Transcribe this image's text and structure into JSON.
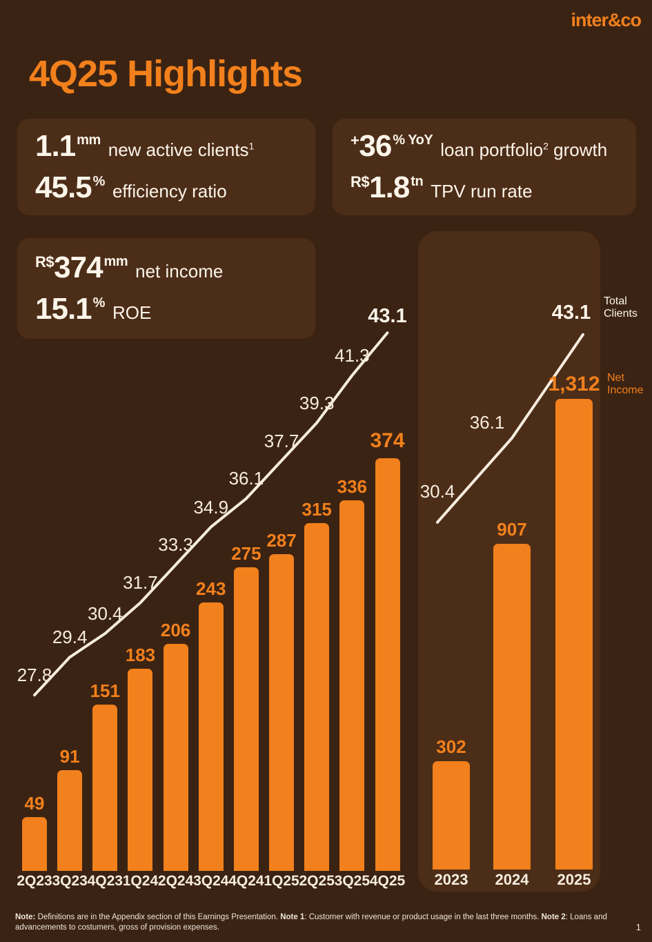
{
  "brand": {
    "logo_text": "inter&co",
    "logo_color": "#F2801C"
  },
  "page": {
    "title": "4Q25 Highlights",
    "page_number": "1",
    "colors": {
      "background": "#3B2313",
      "card": "#4C2D18",
      "accent": "#F2801C",
      "cream": "#FCF5EA"
    }
  },
  "cards": [
    {
      "name": "clients-efficiency-card",
      "metrics": [
        {
          "prefix": "",
          "value": "1.1",
          "unit": "mm",
          "label": "new active clients",
          "label_sup": "1",
          "label_tail": ""
        },
        {
          "prefix": "",
          "value": "45.5",
          "unit": "%",
          "label": "efficiency ratio",
          "label_sup": "",
          "label_tail": ""
        }
      ]
    },
    {
      "name": "loan-tpv-card",
      "metrics": [
        {
          "prefix": "+",
          "value": "36",
          "unit": "% YoY",
          "label": "loan portfolio",
          "label_sup": "2",
          "label_tail": " growth"
        },
        {
          "prefix": "R$",
          "value": "1.8",
          "unit": "tn",
          "label": "TPV run rate",
          "label_sup": "",
          "label_tail": ""
        }
      ]
    },
    {
      "name": "income-roe-card",
      "metrics": [
        {
          "prefix": "R$",
          "value": "374",
          "unit": "mm",
          "label": "net income",
          "label_sup": "",
          "label_tail": ""
        },
        {
          "prefix": "",
          "value": "15.1",
          "unit": "%",
          "label": "ROE",
          "label_sup": "",
          "label_tail": ""
        }
      ]
    }
  ],
  "legend": [
    {
      "label": "Total Clients",
      "series": "line",
      "color": "#FCF5EA"
    },
    {
      "label": "Net Income",
      "series": "bar",
      "color": "#F2801C"
    }
  ],
  "chart_data": [
    {
      "id": "quarterly-combo",
      "type": "bar",
      "subtype": "combo_bar_line",
      "title": "Quarterly Net Income (R$mm) and Total Clients (mm)",
      "categories": [
        "2Q23",
        "3Q23",
        "4Q23",
        "1Q24",
        "2Q24",
        "3Q24",
        "4Q24",
        "1Q25",
        "2Q25",
        "3Q25",
        "4Q25"
      ],
      "series": [
        {
          "name": "Net Income",
          "type": "bar",
          "color": "#F2801C",
          "values": [
            49,
            91,
            151,
            183,
            206,
            243,
            275,
            287,
            315,
            336,
            374
          ],
          "labels": [
            "49",
            "91",
            "151",
            "183",
            "206",
            "243",
            "275",
            "287",
            "315",
            "336",
            "374"
          ]
        },
        {
          "name": "Total Clients",
          "type": "line",
          "color": "#F7EDDE",
          "values": [
            27.8,
            29.4,
            30.4,
            31.7,
            33.3,
            34.9,
            36.1,
            37.7,
            39.3,
            41.3,
            43.1
          ],
          "labels": [
            "27.8",
            "29.4",
            "30.4",
            "31.7",
            "33.3",
            "34.9",
            "36.1",
            "37.7",
            "39.3",
            "41.3",
            "43.1"
          ]
        }
      ],
      "legend_position": "right",
      "grid": false
    },
    {
      "id": "annual-combo",
      "type": "bar",
      "subtype": "combo_bar_line",
      "title": "Annual Net Income (R$mm) and Total Clients (mm)",
      "categories": [
        "2023",
        "2024",
        "2025"
      ],
      "series": [
        {
          "name": "Net Income",
          "type": "bar",
          "color": "#F2801C",
          "values": [
            302,
            907,
            1312
          ],
          "labels": [
            "302",
            "907",
            "1,312"
          ]
        },
        {
          "name": "Total Clients",
          "type": "line",
          "color": "#F7EDDE",
          "values": [
            30.4,
            36.1,
            43.1
          ],
          "labels": [
            "30.4",
            "36.1",
            "43.1"
          ]
        }
      ],
      "legend_position": "right",
      "grid": false
    }
  ],
  "footnote": {
    "segments": [
      {
        "text": "Note:",
        "bold": true
      },
      {
        "text": " Definitions are in the Appendix section of this Earnings Presentation. ",
        "bold": false
      },
      {
        "text": "Note 1",
        "bold": true
      },
      {
        "text": ": Customer with revenue or product usage in the last three months. ",
        "bold": false
      },
      {
        "text": "Note 2",
        "bold": true
      },
      {
        "text": ": Loans and advancements to costumers, gross of provision expenses.",
        "bold": false
      }
    ]
  }
}
